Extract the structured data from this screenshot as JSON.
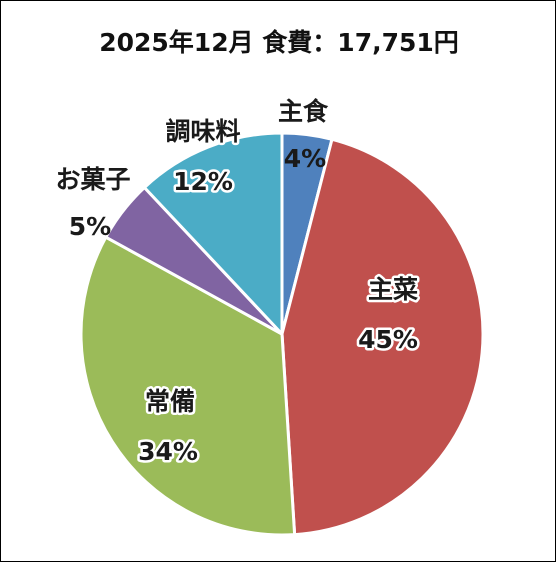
{
  "chart_data": {
    "type": "pie",
    "title": "2025年12月 食費：17,751円",
    "categories": [
      "主食",
      "主菜",
      "常備",
      "お菓子",
      "調味料"
    ],
    "values": [
      4,
      45,
      34,
      5,
      12
    ],
    "value_labels": [
      "4%",
      "45%",
      "34%",
      "5%",
      "12%"
    ],
    "colors": [
      "#4f81bd",
      "#c0504d",
      "#9bbb59",
      "#8064a2",
      "#4bacc6"
    ],
    "start": "12 o'clock",
    "direction": "clockwise",
    "legend": "none"
  }
}
